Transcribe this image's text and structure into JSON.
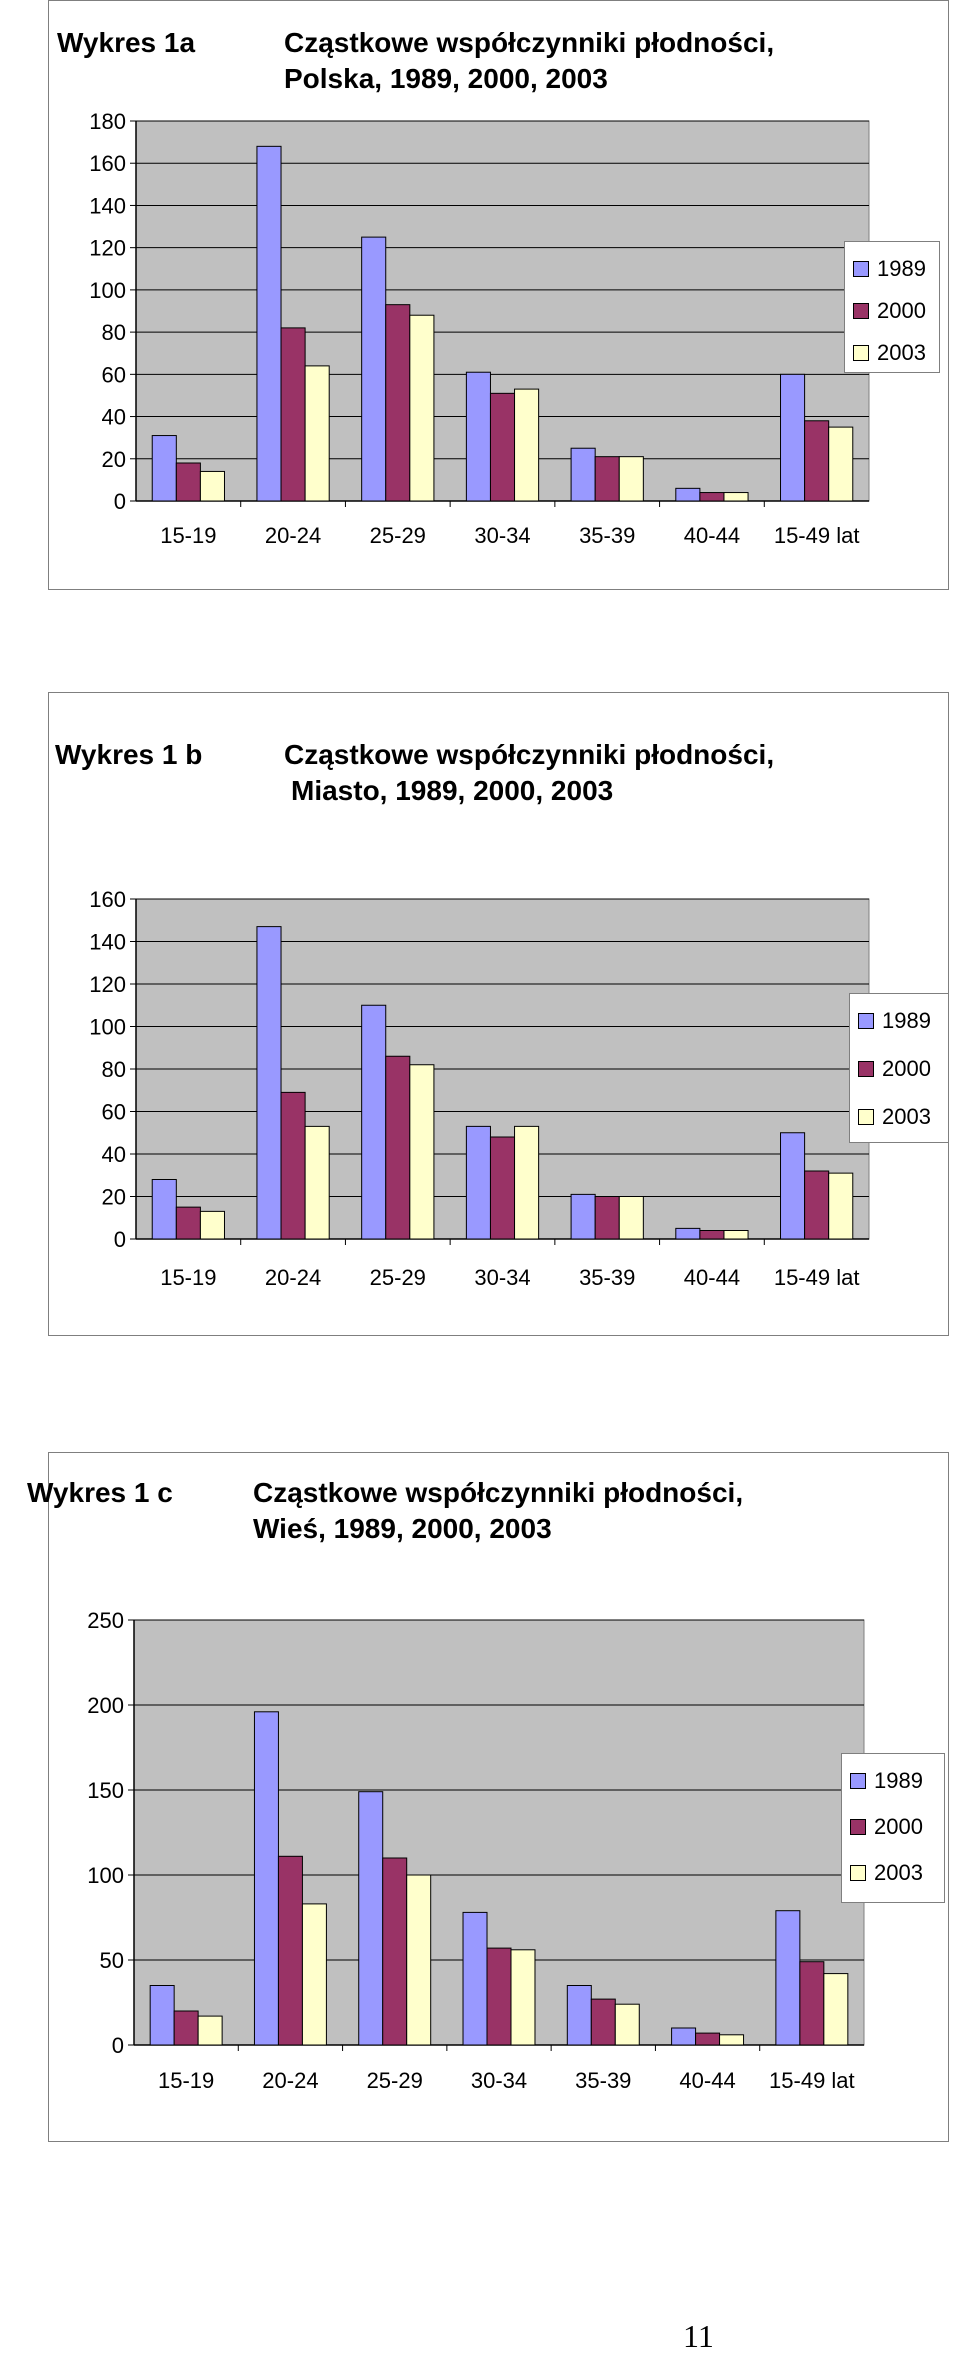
{
  "colors": {
    "s1989": "#9999ff",
    "s2000": "#993366",
    "s2003": "#ffffcc",
    "plot_bg": "#c0c0c0"
  },
  "charts": [
    {
      "label": "Wykres 1a",
      "title_line1": "Cząstkowe współczynniki płodności,",
      "title_line2": "Polska, 1989, 2000, 2003"
    },
    {
      "label": "Wykres 1 b",
      "title_line1": "Cząstkowe współczynniki płodności,",
      "title_line2": "Miasto, 1989, 2000, 2003"
    },
    {
      "label": "Wykres 1 c",
      "title_line1": "Cząstkowe współczynniki płodności,",
      "title_line2": "Wieś, 1989, 2000, 2003"
    }
  ],
  "legend": [
    "1989",
    "2000",
    "2003"
  ],
  "page_number": "11",
  "chart_data": [
    {
      "type": "bar",
      "title": "Cząstkowe współczynniki płodności, Polska, 1989, 2000, 2003",
      "categories": [
        "15-19",
        "20-24",
        "25-29",
        "30-34",
        "35-39",
        "40-44",
        "15-49 lat"
      ],
      "ylim": [
        0,
        180
      ],
      "yticks": [
        0,
        20,
        40,
        60,
        80,
        100,
        120,
        140,
        160,
        180
      ],
      "grid": true,
      "legend_position": "right",
      "series": [
        {
          "name": "1989",
          "values": [
            31,
            168,
            125,
            61,
            25,
            6,
            60
          ]
        },
        {
          "name": "2000",
          "values": [
            18,
            82,
            93,
            51,
            21,
            4,
            38
          ]
        },
        {
          "name": "2003",
          "values": [
            14,
            64,
            88,
            53,
            21,
            4,
            35
          ]
        }
      ]
    },
    {
      "type": "bar",
      "title": "Cząstkowe współczynniki płodności, Miasto, 1989, 2000, 2003",
      "categories": [
        "15-19",
        "20-24",
        "25-29",
        "30-34",
        "35-39",
        "40-44",
        "15-49 lat"
      ],
      "ylim": [
        0,
        160
      ],
      "yticks": [
        0,
        20,
        40,
        60,
        80,
        100,
        120,
        140,
        160
      ],
      "grid": true,
      "legend_position": "right",
      "series": [
        {
          "name": "1989",
          "values": [
            28,
            147,
            110,
            53,
            21,
            5,
            50
          ]
        },
        {
          "name": "2000",
          "values": [
            15,
            69,
            86,
            48,
            20,
            4,
            32
          ]
        },
        {
          "name": "2003",
          "values": [
            13,
            53,
            82,
            53,
            20,
            4,
            31
          ]
        }
      ]
    },
    {
      "type": "bar",
      "title": "Cząstkowe współczynniki płodności, Wieś, 1989, 2000, 2003",
      "categories": [
        "15-19",
        "20-24",
        "25-29",
        "30-34",
        "35-39",
        "40-44",
        "15-49 lat"
      ],
      "ylim": [
        0,
        250
      ],
      "yticks": [
        0,
        50,
        100,
        150,
        200,
        250
      ],
      "grid": true,
      "legend_position": "right",
      "series": [
        {
          "name": "1989",
          "values": [
            35,
            196,
            149,
            78,
            35,
            10,
            79
          ]
        },
        {
          "name": "2000",
          "values": [
            20,
            111,
            110,
            57,
            27,
            7,
            49
          ]
        },
        {
          "name": "2003",
          "values": [
            17,
            83,
            100,
            56,
            24,
            6,
            42
          ]
        }
      ]
    }
  ]
}
